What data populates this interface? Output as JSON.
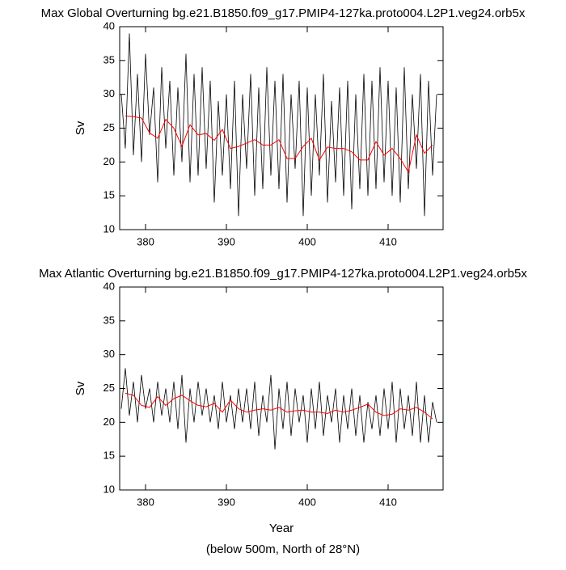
{
  "chart_data": [
    {
      "type": "line",
      "title": "Max Global Overturning bg.e21.B1850.f09_g17.PMIP4-127ka.proto004.L2P1.veg24.orb5x",
      "ylabel": "Sv",
      "xlim": [
        376.8,
        416.8
      ],
      "xticks": [
        380,
        390,
        400,
        410
      ],
      "ylim": [
        10,
        40
      ],
      "yticks": [
        10,
        15,
        20,
        25,
        30,
        35,
        40
      ],
      "series": [
        {
          "color": "#000000",
          "x": [
            377,
            377.5,
            378,
            378.5,
            379,
            379.5,
            380,
            380.5,
            381,
            381.5,
            382,
            382.5,
            383,
            383.5,
            384,
            384.5,
            385,
            385.5,
            386,
            386.5,
            387,
            387.5,
            388,
            388.5,
            389,
            389.5,
            390,
            390.5,
            391,
            391.5,
            392,
            392.5,
            393,
            393.5,
            394,
            394.5,
            395,
            395.5,
            396,
            396.5,
            397,
            397.5,
            398,
            398.5,
            399,
            399.5,
            400,
            400.5,
            401,
            401.5,
            402,
            402.5,
            403,
            403.5,
            404,
            404.5,
            405,
            405.5,
            406,
            406.5,
            407,
            407.5,
            408,
            408.5,
            409,
            409.5,
            410,
            410.5,
            411,
            411.5,
            412,
            412.5,
            413,
            413.5,
            414,
            414.5,
            415,
            415.5,
            416
          ],
          "values": [
            30,
            22,
            39,
            21,
            33,
            20,
            36,
            24,
            31,
            17,
            34,
            22,
            32,
            18,
            31,
            20,
            36,
            17,
            33,
            18,
            34,
            19,
            32,
            14,
            29,
            18,
            30,
            16,
            32,
            12,
            30,
            19,
            33,
            15,
            31,
            16,
            34,
            18,
            32,
            16,
            33,
            14,
            30,
            19,
            32,
            12,
            31,
            15,
            30,
            18,
            33,
            14,
            29,
            17,
            31,
            15,
            32,
            13,
            30,
            16,
            33,
            15,
            32,
            16,
            34,
            17,
            32,
            15,
            31,
            14,
            34,
            16,
            30,
            19,
            33,
            12,
            32,
            18,
            30
          ]
        },
        {
          "color": "#ff0000",
          "x": [
            377.5,
            378.5,
            379.5,
            380.5,
            381.5,
            382.5,
            383.5,
            384.5,
            385.5,
            386.5,
            387.5,
            388.5,
            389.5,
            390.5,
            391.5,
            392.5,
            393.5,
            394.5,
            395.5,
            396.5,
            397.5,
            398.5,
            399.5,
            400.5,
            401.5,
            402.5,
            403.5,
            404.5,
            405.5,
            406.5,
            407.5,
            408.5,
            409.5,
            410.5,
            411.5,
            412.5,
            413.5,
            414.5,
            415.5
          ],
          "values": [
            26.8,
            26.7,
            26.5,
            24.3,
            23.5,
            26.3,
            25,
            22.3,
            25.5,
            24,
            24.2,
            23.2,
            24.8,
            22,
            22.3,
            22.8,
            23.3,
            22.5,
            22.5,
            23.3,
            20.5,
            20.5,
            22.3,
            23.5,
            20.3,
            22.2,
            22,
            22,
            21.5,
            20.3,
            20.3,
            23,
            21,
            22,
            20.5,
            18.5,
            24,
            21.3,
            22.5
          ]
        }
      ]
    },
    {
      "type": "line",
      "title": "Max Atlantic Overturning bg.e21.B1850.f09_g17.PMIP4-127ka.proto004.L2P1.veg24.orb5x",
      "ylabel": "Sv",
      "xlabel": "Year",
      "xlim": [
        376.8,
        416.8
      ],
      "xticks": [
        380,
        390,
        400,
        410
      ],
      "ylim": [
        10,
        40
      ],
      "yticks": [
        10,
        15,
        20,
        25,
        30,
        35,
        40
      ],
      "series": [
        {
          "color": "#000000",
          "x": [
            377,
            377.5,
            378,
            378.5,
            379,
            379.5,
            380,
            380.5,
            381,
            381.5,
            382,
            382.5,
            383,
            383.5,
            384,
            384.5,
            385,
            385.5,
            386,
            386.5,
            387,
            387.5,
            388,
            388.5,
            389,
            389.5,
            390,
            390.5,
            391,
            391.5,
            392,
            392.5,
            393,
            393.5,
            394,
            394.5,
            395,
            395.5,
            396,
            396.5,
            397,
            397.5,
            398,
            398.5,
            399,
            399.5,
            400,
            400.5,
            401,
            401.5,
            402,
            402.5,
            403,
            403.5,
            404,
            404.5,
            405,
            405.5,
            406,
            406.5,
            407,
            407.5,
            408,
            408.5,
            409,
            409.5,
            410,
            410.5,
            411,
            411.5,
            412,
            412.5,
            413,
            413.5,
            414,
            414.5,
            415,
            415.5,
            416
          ],
          "values": [
            22,
            28,
            21,
            26,
            20,
            27,
            22,
            25,
            20,
            26,
            21,
            25,
            20,
            26,
            19,
            27,
            17,
            25,
            20,
            26,
            21,
            25,
            20,
            24,
            19,
            26,
            20,
            24,
            19,
            25,
            20,
            25,
            19,
            26,
            18,
            24,
            20,
            27,
            16,
            25,
            19,
            26,
            18,
            25,
            20,
            24,
            17,
            25,
            19,
            26,
            18,
            24,
            20,
            25,
            17,
            24,
            19,
            25,
            18,
            24,
            17,
            23,
            19,
            24,
            18,
            25,
            19,
            26,
            17,
            25,
            19,
            24,
            18,
            26,
            17,
            24,
            17,
            23,
            20
          ]
        },
        {
          "color": "#ff0000",
          "x": [
            377.5,
            378.5,
            379.5,
            380.5,
            381.5,
            382.5,
            383.5,
            384.5,
            385.5,
            386.5,
            387.5,
            388.5,
            389.5,
            390.5,
            391.5,
            392.5,
            393.5,
            394.5,
            395.5,
            396.5,
            397.5,
            398.5,
            399.5,
            400.5,
            401.5,
            402.5,
            403.5,
            404.5,
            405.5,
            406.5,
            407.5,
            408.5,
            409.5,
            410.5,
            411.5,
            412.5,
            413.5,
            414.5,
            415.5
          ],
          "values": [
            24.3,
            24,
            22.5,
            22.2,
            23.8,
            22.5,
            23.5,
            24,
            23.2,
            22.5,
            22.3,
            22.8,
            21.5,
            23.3,
            22,
            21.5,
            21.8,
            22,
            21.8,
            22.2,
            21.5,
            21.7,
            21.8,
            21.5,
            21.5,
            21.3,
            21.8,
            21.5,
            21.8,
            22.2,
            22.7,
            21.5,
            21,
            21.2,
            22,
            21.8,
            22.2,
            21.5,
            20.5
          ]
        }
      ]
    }
  ],
  "caption": "(below 500m, North of 28°N)"
}
